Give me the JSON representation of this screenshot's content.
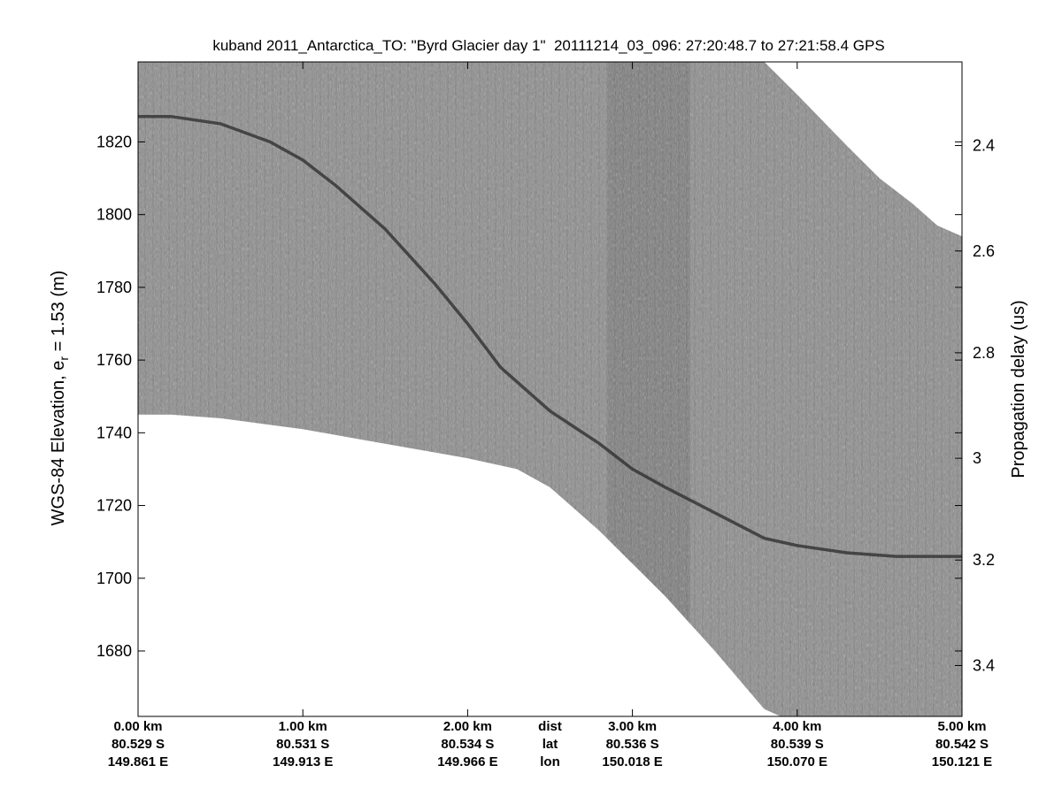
{
  "chart_data": {
    "type": "heatmap",
    "title": "kuband 2011_Antarctica_TO: \"Byrd Glacier day 1\"  20111214_03_096: 27:20:48.7 to 27:21:58.4 GPS",
    "ylabel_left": {
      "main": "WGS-84 Elevation, e",
      "sub": "r",
      "rest": " = 1.53 (m)"
    },
    "ylabel_right": "Propagation delay (us)",
    "ylim": [
      1662,
      1842
    ],
    "yticks_left": [
      1680,
      1700,
      1720,
      1740,
      1760,
      1780,
      1800,
      1820
    ],
    "yticks_right": [
      {
        "label": "2.4",
        "elev": 1819
      },
      {
        "label": "2.6",
        "elev": 1790
      },
      {
        "label": "2.8",
        "elev": 1762
      },
      {
        "label": "3",
        "elev": 1733
      },
      {
        "label": "3.2",
        "elev": 1705
      },
      {
        "label": "3.4",
        "elev": 1676
      }
    ],
    "xlim_km": [
      0,
      5
    ],
    "x_columns": [
      {
        "km": 0,
        "dist": "0.00 km",
        "lat": "80.529 S",
        "lon": "149.861 E"
      },
      {
        "km": 1,
        "dist": "1.00 km",
        "lat": "80.531 S",
        "lon": "149.913 E"
      },
      {
        "km": 2,
        "dist": "2.00 km",
        "lat": "80.534 S",
        "lon": "149.966 E"
      },
      {
        "km": 3,
        "dist": "3.00 km",
        "lat": "80.536 S",
        "lon": "150.018 E"
      },
      {
        "km": 4,
        "dist": "4.00 km",
        "lat": "80.539 S",
        "lon": "150.070 E"
      },
      {
        "km": 5,
        "dist": "5.00 km",
        "lat": "80.542 S",
        "lon": "150.121 E"
      }
    ],
    "x_row_labels": {
      "km": 2.5,
      "dist": "dist",
      "lat": "lat",
      "lon": "lon"
    },
    "surface_elevation": [
      [
        0,
        1827
      ],
      [
        0.2,
        1827
      ],
      [
        0.5,
        1825
      ],
      [
        0.8,
        1820
      ],
      [
        1.0,
        1815
      ],
      [
        1.2,
        1808
      ],
      [
        1.5,
        1796
      ],
      [
        1.8,
        1781
      ],
      [
        2.0,
        1770
      ],
      [
        2.2,
        1758
      ],
      [
        2.5,
        1746
      ],
      [
        2.8,
        1737
      ],
      [
        3.0,
        1730
      ],
      [
        3.2,
        1725
      ],
      [
        3.5,
        1718
      ],
      [
        3.8,
        1711
      ],
      [
        4.0,
        1709
      ],
      [
        4.3,
        1707
      ],
      [
        4.6,
        1706
      ],
      [
        4.8,
        1706
      ],
      [
        5.0,
        1706
      ]
    ],
    "data_top_elevation": [
      [
        0,
        1842
      ],
      [
        3.8,
        1842
      ],
      [
        4.0,
        1833
      ],
      [
        4.3,
        1819
      ],
      [
        4.5,
        1810
      ],
      [
        4.7,
        1803
      ],
      [
        4.85,
        1797
      ],
      [
        5.0,
        1794
      ]
    ],
    "data_bottom_elevation": [
      [
        0,
        1745
      ],
      [
        0.2,
        1745
      ],
      [
        0.5,
        1744
      ],
      [
        1.0,
        1741
      ],
      [
        1.5,
        1737
      ],
      [
        2.0,
        1733
      ],
      [
        2.3,
        1730
      ],
      [
        2.5,
        1725
      ],
      [
        2.8,
        1713
      ],
      [
        3.0,
        1704
      ],
      [
        3.2,
        1695
      ],
      [
        3.5,
        1680
      ],
      [
        3.8,
        1664
      ],
      [
        3.9,
        1662
      ]
    ]
  }
}
